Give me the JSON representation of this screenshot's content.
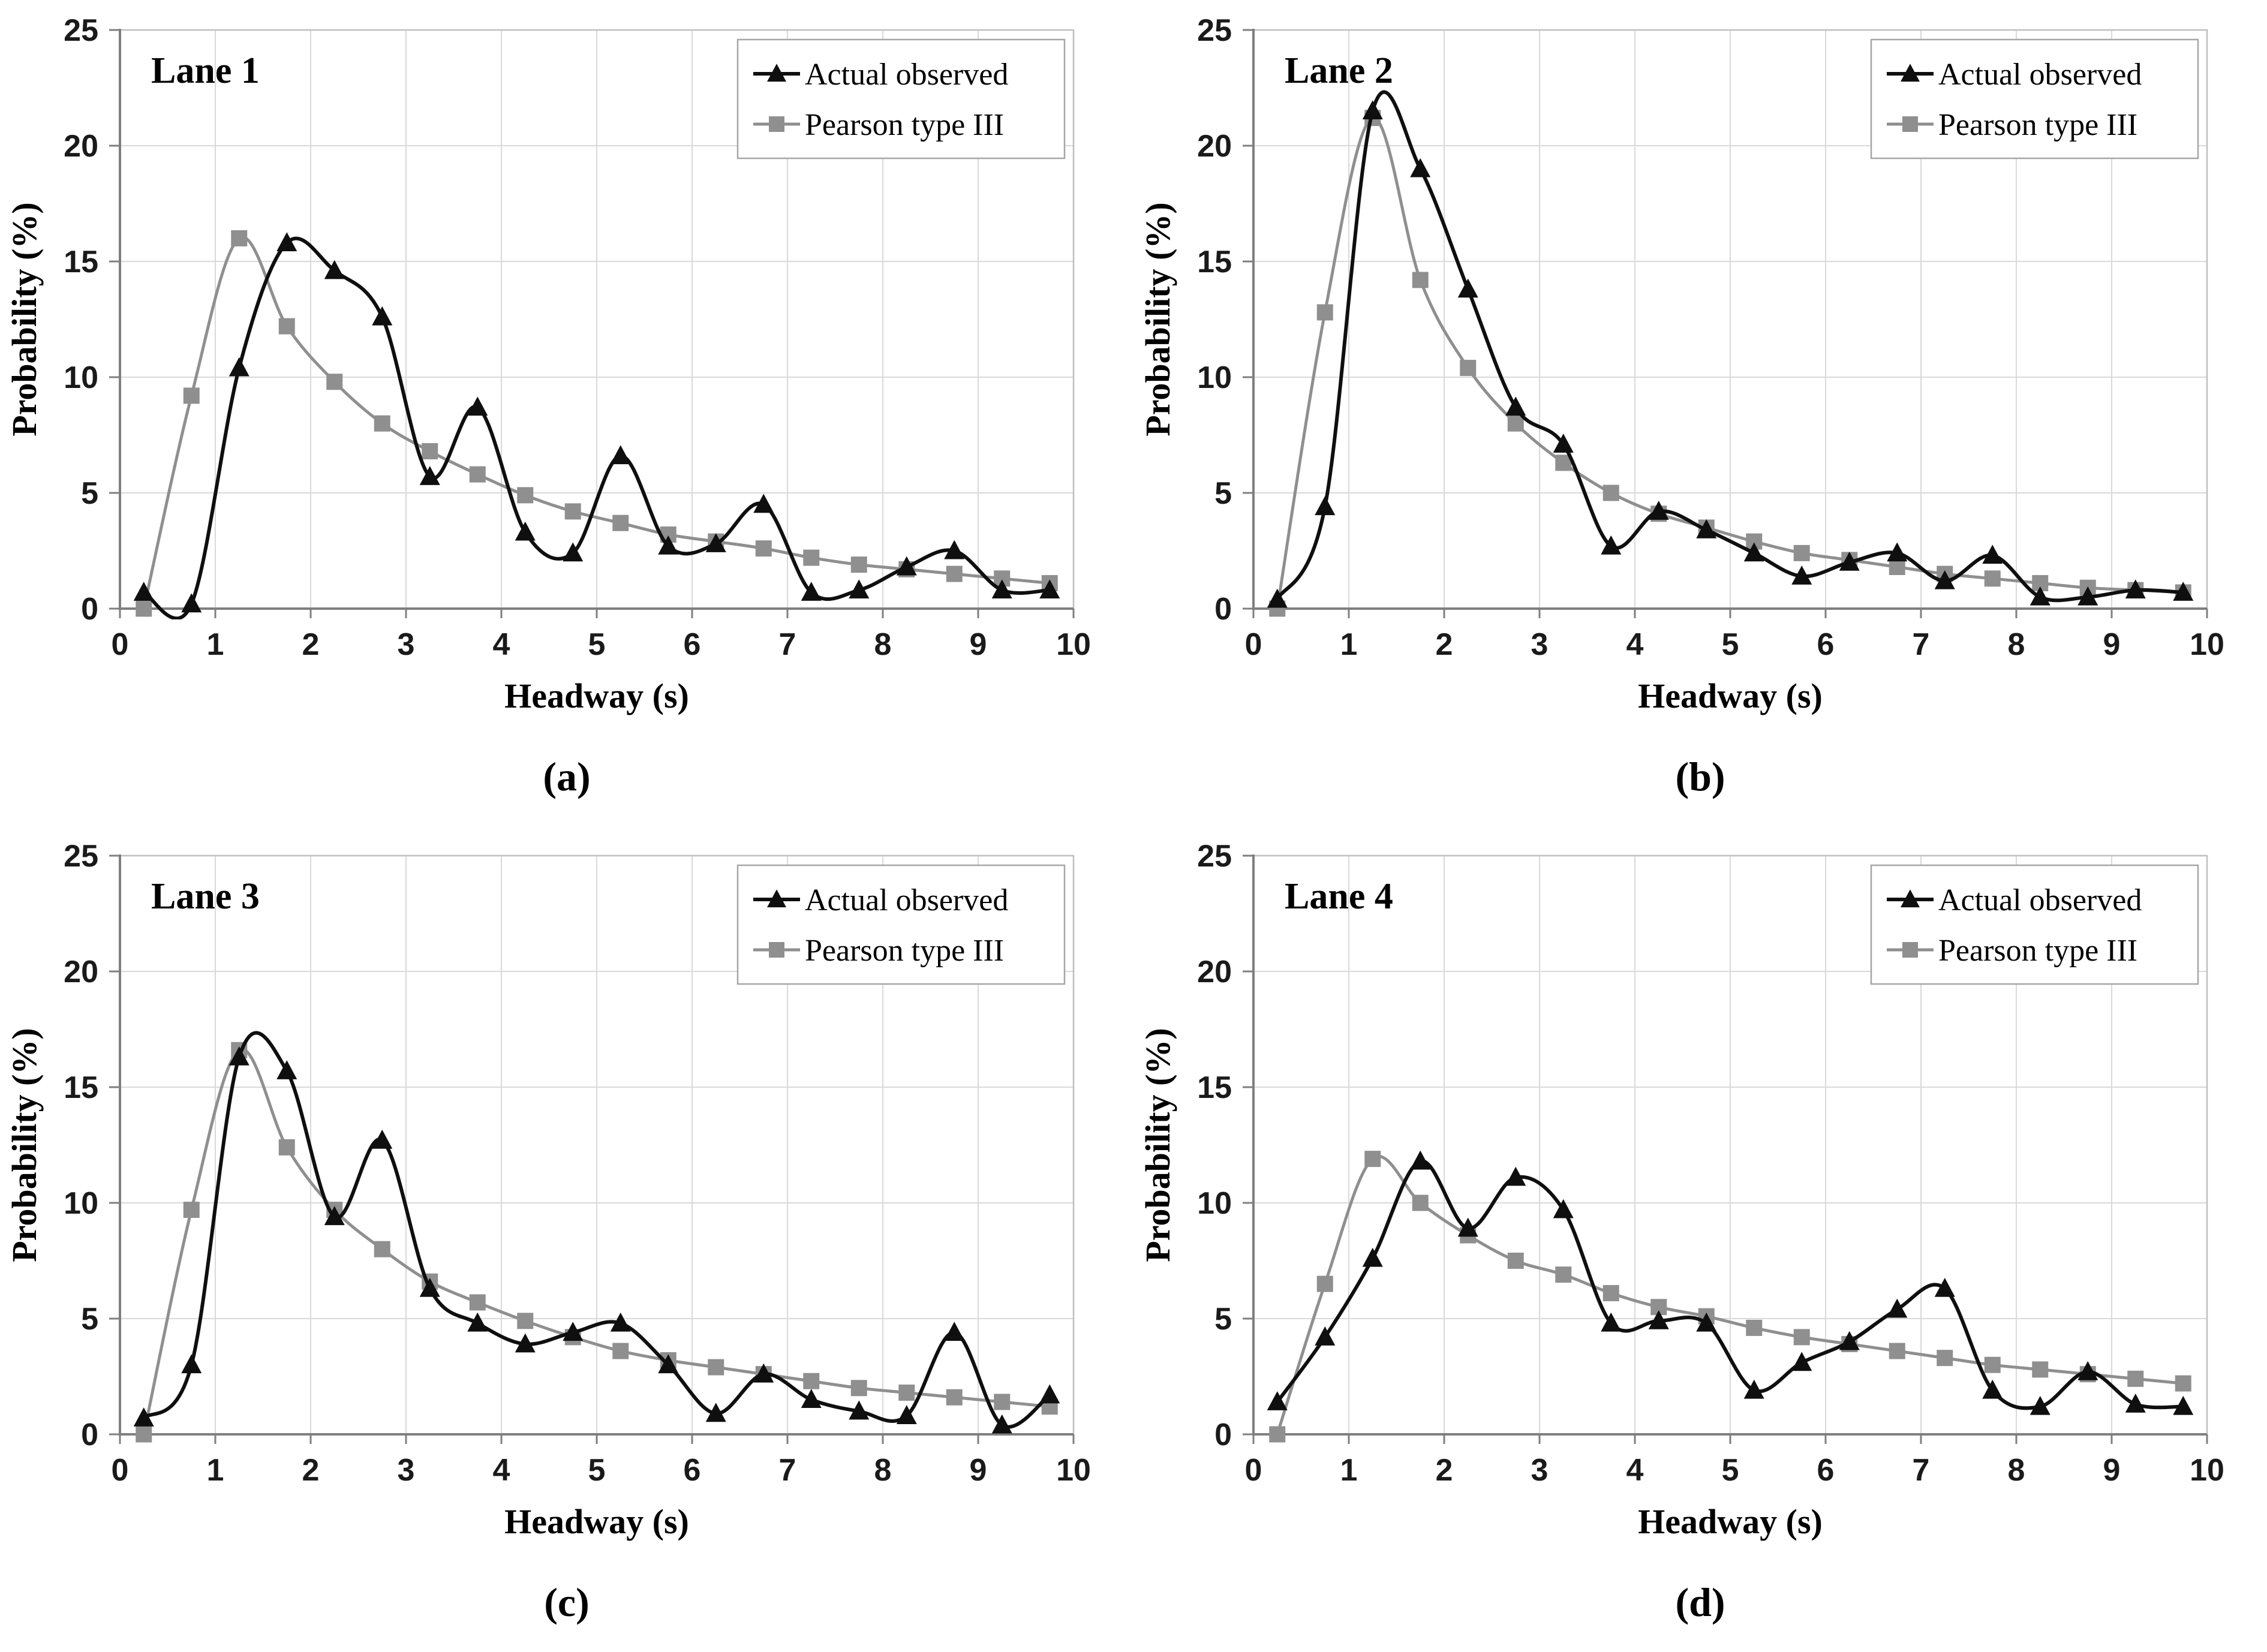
{
  "page": {
    "background": "#ffffff"
  },
  "colors": {
    "actual_series": "#0f0f0f",
    "pearson_series": "#8f8f8f",
    "gridline": "#d9d9d9",
    "axis_line": "#7f7f7f",
    "plot_border": "#bfbfbf",
    "legend_border": "#a6a6a6",
    "text": "#000000"
  },
  "legend": {
    "items": [
      {
        "label": "Actual observed",
        "marker": "triangle-icon"
      },
      {
        "label": "Pearson type III",
        "marker": "square-icon"
      }
    ]
  },
  "axes": {
    "x_label": "Headway (s)",
    "y_label": "Probability (%)",
    "x_ticks": [
      0,
      1,
      2,
      3,
      4,
      5,
      6,
      7,
      8,
      9,
      10
    ],
    "y_ticks": [
      0,
      5,
      10,
      15,
      20,
      25
    ],
    "xlim": [
      0,
      10
    ],
    "ylim": [
      0,
      25
    ],
    "grid": "on",
    "legend_position": "top-right"
  },
  "chart_data": [
    {
      "type": "line",
      "title": "Lane 1",
      "sublabel": "(a)",
      "x": [
        0.25,
        0.75,
        1.25,
        1.75,
        2.25,
        2.75,
        3.25,
        3.75,
        4.25,
        4.75,
        5.25,
        5.75,
        6.25,
        6.75,
        7.25,
        7.75,
        8.25,
        8.75,
        9.25,
        9.75
      ],
      "series": [
        {
          "name": "Actual observed",
          "values": [
            0.7,
            0.2,
            10.4,
            15.8,
            14.6,
            12.6,
            5.7,
            8.7,
            3.3,
            2.4,
            6.6,
            2.7,
            2.8,
            4.5,
            0.7,
            0.8,
            1.8,
            2.5,
            0.8,
            0.8
          ]
        },
        {
          "name": "Pearson type III",
          "values": [
            0.0,
            9.2,
            16.0,
            12.2,
            9.8,
            8.0,
            6.8,
            5.8,
            4.9,
            4.2,
            3.7,
            3.2,
            2.9,
            2.6,
            2.2,
            1.9,
            1.7,
            1.5,
            1.3,
            1.1
          ]
        }
      ]
    },
    {
      "type": "line",
      "title": "Lane 2",
      "sublabel": "(b)",
      "x": [
        0.25,
        0.75,
        1.25,
        1.75,
        2.25,
        2.75,
        3.25,
        3.75,
        4.25,
        4.75,
        5.25,
        5.75,
        6.25,
        6.75,
        7.25,
        7.75,
        8.25,
        8.75,
        9.25,
        9.75
      ],
      "series": [
        {
          "name": "Actual observed",
          "values": [
            0.4,
            4.4,
            21.5,
            19.0,
            13.8,
            8.7,
            7.1,
            2.7,
            4.2,
            3.4,
            2.4,
            1.4,
            2.0,
            2.4,
            1.2,
            2.3,
            0.5,
            0.5,
            0.8,
            0.7
          ]
        },
        {
          "name": "Pearson type III",
          "values": [
            0.0,
            12.8,
            21.2,
            14.2,
            10.4,
            8.0,
            6.3,
            5.0,
            4.1,
            3.5,
            2.9,
            2.4,
            2.1,
            1.8,
            1.5,
            1.3,
            1.1,
            0.9,
            0.8,
            0.7
          ]
        }
      ]
    },
    {
      "type": "line",
      "title": "Lane 3",
      "sublabel": "(c)",
      "x": [
        0.25,
        0.75,
        1.25,
        1.75,
        2.25,
        2.75,
        3.25,
        3.75,
        4.25,
        4.75,
        5.25,
        5.75,
        6.25,
        6.75,
        7.25,
        7.75,
        8.25,
        8.75,
        9.25,
        9.75
      ],
      "series": [
        {
          "name": "Actual observed",
          "values": [
            0.7,
            3.0,
            16.3,
            15.7,
            9.4,
            12.7,
            6.3,
            4.8,
            3.9,
            4.4,
            4.8,
            3.0,
            0.9,
            2.6,
            1.5,
            1.0,
            0.8,
            4.4,
            0.4,
            1.7
          ]
        },
        {
          "name": "Pearson type III",
          "values": [
            0.0,
            9.7,
            16.6,
            12.4,
            9.7,
            8.0,
            6.6,
            5.7,
            4.9,
            4.2,
            3.6,
            3.2,
            2.9,
            2.6,
            2.3,
            2.0,
            1.8,
            1.6,
            1.4,
            1.2
          ]
        }
      ]
    },
    {
      "type": "line",
      "title": "Lane 4",
      "sublabel": "(d)",
      "x": [
        0.25,
        0.75,
        1.25,
        1.75,
        2.25,
        2.75,
        3.25,
        3.75,
        4.25,
        4.75,
        5.25,
        5.75,
        6.25,
        6.75,
        7.25,
        7.75,
        8.25,
        8.75,
        9.25,
        9.75
      ],
      "series": [
        {
          "name": "Actual observed",
          "values": [
            1.4,
            4.2,
            7.6,
            11.8,
            8.9,
            11.1,
            9.7,
            4.8,
            4.9,
            4.8,
            1.9,
            3.1,
            4.0,
            5.4,
            6.3,
            1.9,
            1.2,
            2.7,
            1.3,
            1.2
          ]
        },
        {
          "name": "Pearson type III",
          "values": [
            0.0,
            6.5,
            11.9,
            10.0,
            8.6,
            7.5,
            6.9,
            6.1,
            5.5,
            5.1,
            4.6,
            4.2,
            3.9,
            3.6,
            3.3,
            3.0,
            2.8,
            2.6,
            2.4,
            2.2
          ]
        }
      ]
    }
  ]
}
